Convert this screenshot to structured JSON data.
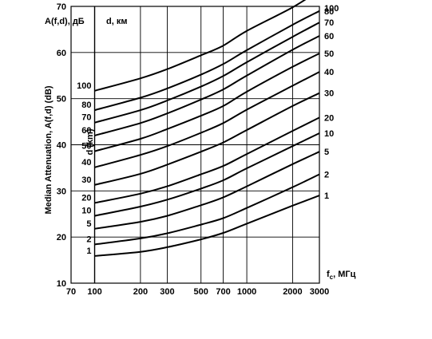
{
  "chart_data": {
    "type": "line",
    "header_left": "A(f,d),  дБ",
    "header_mid": "d, км",
    "ylabel": "Median Attenuation, A(f,d) (dB)",
    "dlabel": "d (km)",
    "xlabel": "f",
    "xlabel_sub": "c",
    "xlabel_unit": ", МГц",
    "x_scale": "log",
    "xlim": [
      70,
      3000
    ],
    "ylim": [
      10,
      70
    ],
    "grid": true,
    "x_ticks": [
      70,
      100,
      200,
      300,
      500,
      700,
      1000,
      2000,
      3000
    ],
    "x_tick_labels": [
      "70",
      "100",
      "200",
      "300",
      "500",
      "700",
      "1000",
      "2000",
      "3000"
    ],
    "y_ticks": [
      10,
      20,
      30,
      40,
      50,
      60,
      70
    ],
    "y_tick_labels": [
      "10",
      "20",
      "30",
      "40",
      "50",
      "60",
      "70"
    ],
    "right_axis_labels": [
      "100",
      "80",
      "70",
      "60",
      "50",
      "40",
      "30",
      "20",
      "10",
      "5",
      "2",
      "1"
    ],
    "x": [
      100,
      200,
      300,
      500,
      700,
      1000,
      2000,
      3000
    ],
    "series": [
      {
        "name": "100",
        "values": [
          51.7,
          54.4,
          56.4,
          59.4,
          61.5,
          64.7,
          69.8,
          73.5
        ]
      },
      {
        "name": "80",
        "values": [
          47.5,
          50.2,
          52.2,
          55.2,
          57.5,
          60.5,
          66.0,
          69.0
        ]
      },
      {
        "name": "70",
        "values": [
          44.8,
          47.5,
          49.6,
          52.6,
          54.9,
          57.9,
          63.4,
          66.5
        ]
      },
      {
        "name": "60",
        "values": [
          42.0,
          44.7,
          46.8,
          49.8,
          52.0,
          55.0,
          60.6,
          63.6
        ]
      },
      {
        "name": "50",
        "values": [
          38.6,
          41.3,
          43.4,
          46.3,
          48.4,
          51.5,
          56.9,
          59.8
        ]
      },
      {
        "name": "40",
        "values": [
          35.1,
          37.8,
          39.7,
          42.6,
          44.7,
          47.6,
          52.8,
          55.8
        ]
      },
      {
        "name": "30",
        "values": [
          31.3,
          33.7,
          35.7,
          38.5,
          40.5,
          43.2,
          48.4,
          51.2
        ]
      },
      {
        "name": "20",
        "values": [
          27.4,
          29.4,
          31.0,
          33.6,
          35.4,
          38.0,
          43.0,
          45.9
        ]
      },
      {
        "name": "10",
        "values": [
          24.6,
          26.6,
          28.1,
          30.5,
          32.3,
          34.9,
          39.7,
          42.5
        ]
      },
      {
        "name": "5",
        "values": [
          21.8,
          23.3,
          24.6,
          26.9,
          28.6,
          31.0,
          35.8,
          38.5
        ]
      },
      {
        "name": "2",
        "values": [
          18.4,
          19.7,
          20.8,
          22.7,
          24.1,
          26.3,
          30.8,
          33.6
        ]
      },
      {
        "name": "1",
        "values": [
          15.9,
          16.8,
          17.8,
          19.5,
          20.9,
          22.9,
          26.8,
          29.0
        ]
      }
    ]
  }
}
